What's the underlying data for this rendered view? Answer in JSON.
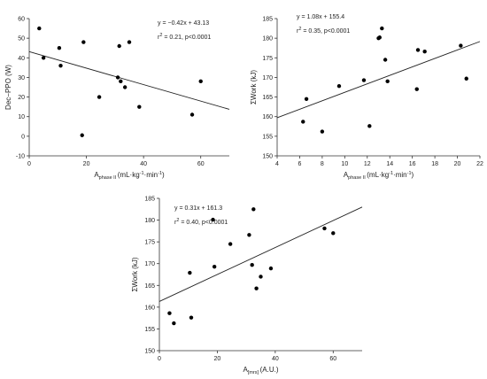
{
  "chart_data": [
    {
      "type": "scatter",
      "xlabel": "A phase II (mL·kg⁻¹·min⁻¹)",
      "xlabel_parts": {
        "main": "A",
        "sub": "phase II",
        "unit": "(mL·kg",
        "e1": "-1",
        "mid": "·min",
        "e2": "-1",
        "end": ")"
      },
      "ylabel": "Dec−PPO (W)",
      "xlim": [
        0,
        70
      ],
      "ylim": [
        -10,
        60
      ],
      "xticks": [
        0,
        20,
        40,
        60
      ],
      "yticks": [
        -10,
        0,
        10,
        20,
        30,
        40,
        50,
        60
      ],
      "equation": "y = −0.42x + 43.13",
      "stats": {
        "r": "r",
        "sup": "2",
        "rest": " = 0.21, p<0.0001"
      },
      "fit": {
        "slope": -0.42,
        "intercept": 43.13
      },
      "x": [
        3.5,
        5,
        10.5,
        11,
        18.5,
        19,
        24.5,
        31,
        31.5,
        32,
        33.5,
        35,
        38.5,
        57,
        60
      ],
      "y": [
        55,
        40,
        45,
        36,
        0.5,
        48,
        20,
        30,
        46,
        28,
        25,
        48,
        15,
        11,
        28
      ]
    },
    {
      "type": "scatter",
      "xlabel": "A phase II (mL·kg⁻¹·min⁻¹)",
      "xlabel_parts": {
        "main": "A",
        "sub": "phase II",
        "unit": "(mL·kg",
        "e1": "-1",
        "mid": "·min",
        "e2": "-1",
        "end": ")"
      },
      "ylabel": "ΣWork (kJ)",
      "xlim": [
        4,
        22
      ],
      "ylim": [
        150,
        185
      ],
      "xticks": [
        4,
        6,
        8,
        10,
        12,
        14,
        16,
        18,
        20,
        22
      ],
      "yticks": [
        150,
        155,
        160,
        165,
        170,
        175,
        180,
        185
      ],
      "equation": "y = 1.08x + 155.4",
      "stats": {
        "r": "r",
        "sup": "2",
        "rest": " = 0.35, p<0.0001"
      },
      "fit": {
        "slope": 1.08,
        "intercept": 155.4
      },
      "x": [
        6.3,
        6.6,
        8,
        9.5,
        11.7,
        12.2,
        13,
        13.1,
        13.3,
        13.6,
        13.8,
        16.4,
        16.5,
        17.1,
        20.3,
        20.8
      ],
      "y": [
        158.7,
        164.5,
        156.2,
        167.8,
        169.3,
        157.6,
        180,
        180.2,
        182.5,
        174.5,
        169,
        167,
        177,
        176.6,
        178.1,
        169.7
      ]
    },
    {
      "type": "scatter",
      "xlabel": "A [mrs] (A.U.)",
      "xlabel_parts": {
        "main": "A",
        "sub": "[mrs]",
        "unit": "(A.U.)"
      },
      "ylabel": "ΣWork (kJ)",
      "xlim": [
        0,
        70
      ],
      "ylim": [
        150,
        185
      ],
      "xticks": [
        0,
        20,
        40,
        60
      ],
      "yticks": [
        150,
        155,
        160,
        165,
        170,
        175,
        180,
        185
      ],
      "equation": "y = 0.31x + 161.3",
      "stats": {
        "r": "r",
        "sup": "2",
        "rest": " = 0.40, p<0.0001"
      },
      "fit": {
        "slope": 0.31,
        "intercept": 161.3
      },
      "x": [
        3.5,
        5,
        10.5,
        11,
        18.5,
        19,
        24.5,
        31,
        32,
        32.5,
        33.5,
        35,
        38.5,
        57,
        60
      ],
      "y": [
        158.6,
        156.3,
        167.9,
        157.6,
        180.1,
        169.3,
        174.5,
        176.6,
        169.7,
        182.5,
        164.3,
        167,
        168.9,
        178.1,
        177
      ]
    }
  ]
}
